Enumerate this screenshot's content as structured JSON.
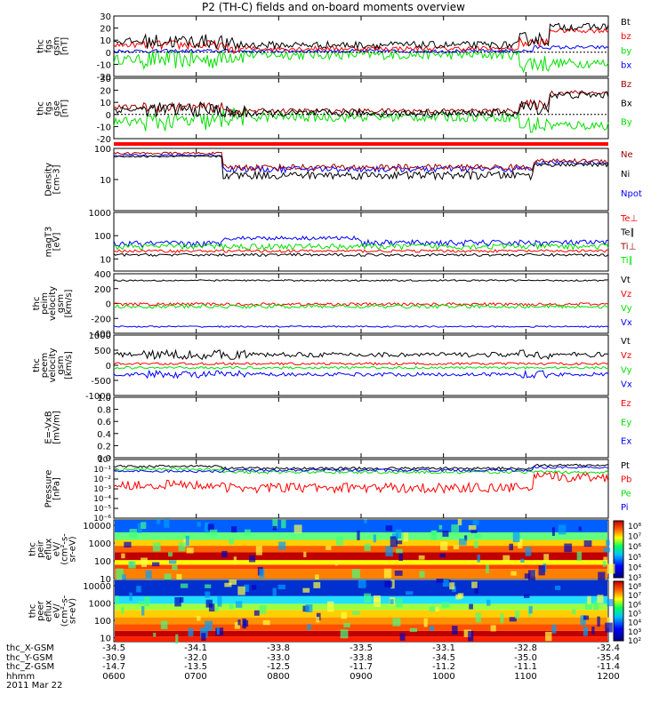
{
  "title": "P2 (TH-C) fields and on-board moments overview",
  "colors": {
    "black": "#000000",
    "red": "#ff0000",
    "green": "#00e000",
    "blue": "#0000ff",
    "darkred": "#a00000"
  },
  "chart_data": [
    {
      "type": "line",
      "id": "fgs_gsm",
      "ylabel_lines": [
        "thc",
        "fgs",
        "gsm",
        "[nT]"
      ],
      "ylim": [
        -20,
        30
      ],
      "ticks": [
        30,
        20,
        10,
        0,
        -10,
        -20
      ],
      "legend": [
        {
          "label": "Bt",
          "color": "black"
        },
        {
          "label": "bz",
          "color": "red"
        },
        {
          "label": "by",
          "color": "green"
        },
        {
          "label": "bx",
          "color": "blue"
        }
      ]
    },
    {
      "type": "line",
      "id": "fgs_dsl",
      "ylabel_lines": [
        "thc",
        "fgs",
        "gse",
        "[nT]"
      ],
      "ylim": [
        -20,
        30
      ],
      "ticks": [
        30,
        20,
        10,
        0,
        -10,
        -20
      ],
      "legend": [
        {
          "label": "Bz",
          "color": "darkred"
        },
        {
          "label": "Bx",
          "color": "black"
        },
        {
          "label": "By",
          "color": "green"
        }
      ]
    },
    {
      "type": "line",
      "id": "density",
      "ylabel_lines": [
        "Density",
        "[cm-3]"
      ],
      "scale": "log",
      "ylim": [
        1,
        100
      ],
      "ticks": [
        100,
        10
      ],
      "legend": [
        {
          "label": "Ne",
          "color": "darkred"
        },
        {
          "label": "Ni",
          "color": "black"
        },
        {
          "label": "Npot",
          "color": "blue"
        }
      ]
    },
    {
      "type": "line",
      "id": "temp",
      "ylabel_lines": [
        "magT3",
        "[eV]"
      ],
      "scale": "log",
      "ylim": [
        3,
        1000
      ],
      "ticks": [
        1000,
        100,
        10
      ],
      "legend": [
        {
          "label": "Te⊥",
          "color": "red"
        },
        {
          "label": "Te∥",
          "color": "black"
        },
        {
          "label": "Ti⊥",
          "color": "darkred"
        },
        {
          "label": "Ti∥",
          "color": "green"
        }
      ]
    },
    {
      "type": "line",
      "id": "peim_vel",
      "ylabel_lines": [
        "thc",
        "peim",
        "velocity",
        "gsm",
        "[km/s]"
      ],
      "ylim": [
        -400,
        400
      ],
      "ticks": [
        400,
        200,
        0,
        -200,
        -400
      ],
      "legend": [
        {
          "label": "Vt",
          "color": "black"
        },
        {
          "label": "Vz",
          "color": "red"
        },
        {
          "label": "Vy",
          "color": "green"
        },
        {
          "label": "Vx",
          "color": "blue"
        }
      ]
    },
    {
      "type": "line",
      "id": "peem_vel",
      "ylabel_lines": [
        "thc",
        "peem",
        "velocity",
        "gsm",
        "[km/s]"
      ],
      "ylim": [
        -1000,
        1000
      ],
      "ticks": [
        1000,
        500,
        0,
        -500,
        -1000
      ],
      "legend": [
        {
          "label": "Vt",
          "color": "black"
        },
        {
          "label": "Vz",
          "color": "red"
        },
        {
          "label": "Vy",
          "color": "green"
        },
        {
          "label": "Vx",
          "color": "blue"
        }
      ]
    },
    {
      "type": "line",
      "id": "efield",
      "ylabel_lines": [
        "E=-VxB",
        "[mV/m]"
      ],
      "ylim": [
        0,
        1
      ],
      "ticks": [
        1.0,
        0.8,
        0.6,
        0.4,
        0.2,
        0.0
      ],
      "legend": [
        {
          "label": "Ez",
          "color": "red"
        },
        {
          "label": "Ey",
          "color": "green"
        },
        {
          "label": "Ex",
          "color": "blue"
        }
      ]
    },
    {
      "type": "line",
      "id": "pressure",
      "ylabel_lines": [
        "Pressure",
        "[nPa]"
      ],
      "scale": "log",
      "ylim": [
        -6,
        0
      ],
      "tick_labels": [
        "10⁰",
        "10⁻¹",
        "10⁻²",
        "10⁻³",
        "10⁻⁴",
        "10⁻⁵",
        "10⁻⁶"
      ],
      "legend": [
        {
          "label": "Pt",
          "color": "black"
        },
        {
          "label": "Pb",
          "color": "red"
        },
        {
          "label": "Pe",
          "color": "green"
        },
        {
          "label": "Pi",
          "color": "blue"
        }
      ]
    },
    {
      "type": "heatmap",
      "id": "peir",
      "ylabel_lines": [
        "thc",
        "peir",
        "eflux",
        "eV/",
        "(cm²-s-",
        "sr-eV)"
      ],
      "scale": "log",
      "ylim": [
        10,
        20000
      ],
      "ticks": [
        10000,
        1000,
        100,
        10
      ],
      "colorbar": [
        "10⁸",
        "10⁷",
        "10⁶",
        "10⁵",
        "10⁴",
        "10³"
      ]
    },
    {
      "type": "heatmap",
      "id": "peer",
      "ylabel_lines": [
        "thc",
        "peer",
        "eflux",
        "eV/",
        "(cm²-s-",
        "sr-eV)"
      ],
      "scale": "log",
      "ylim": [
        6,
        20000
      ],
      "ticks": [
        10000,
        1000,
        100,
        10
      ],
      "colorbar": [
        "10⁸",
        "10⁷",
        "10⁶",
        "10⁵",
        "10⁴",
        "10³",
        "10²"
      ]
    }
  ],
  "footer": {
    "rows": [
      {
        "label": "thc_X-GSM",
        "values": [
          "-34.5",
          "-34.1",
          "-33.8",
          "-33.5",
          "-33.1",
          "-32.8",
          "-32.4"
        ]
      },
      {
        "label": "thc_Y-GSM",
        "values": [
          "-30.9",
          "-32.0",
          "-33.0",
          "-33.8",
          "-34.5",
          "-35.0",
          "-35.4"
        ]
      },
      {
        "label": "thc_Z-GSM",
        "values": [
          "-14.7",
          "-13.5",
          "-12.5",
          "-11.7",
          "-11.2",
          "-11.1",
          "-11.4"
        ]
      },
      {
        "label": "hhmm",
        "values": [
          "0600",
          "0700",
          "0800",
          "0900",
          "1000",
          "1100",
          "1200"
        ]
      }
    ],
    "date": "2011 Mar 22"
  }
}
